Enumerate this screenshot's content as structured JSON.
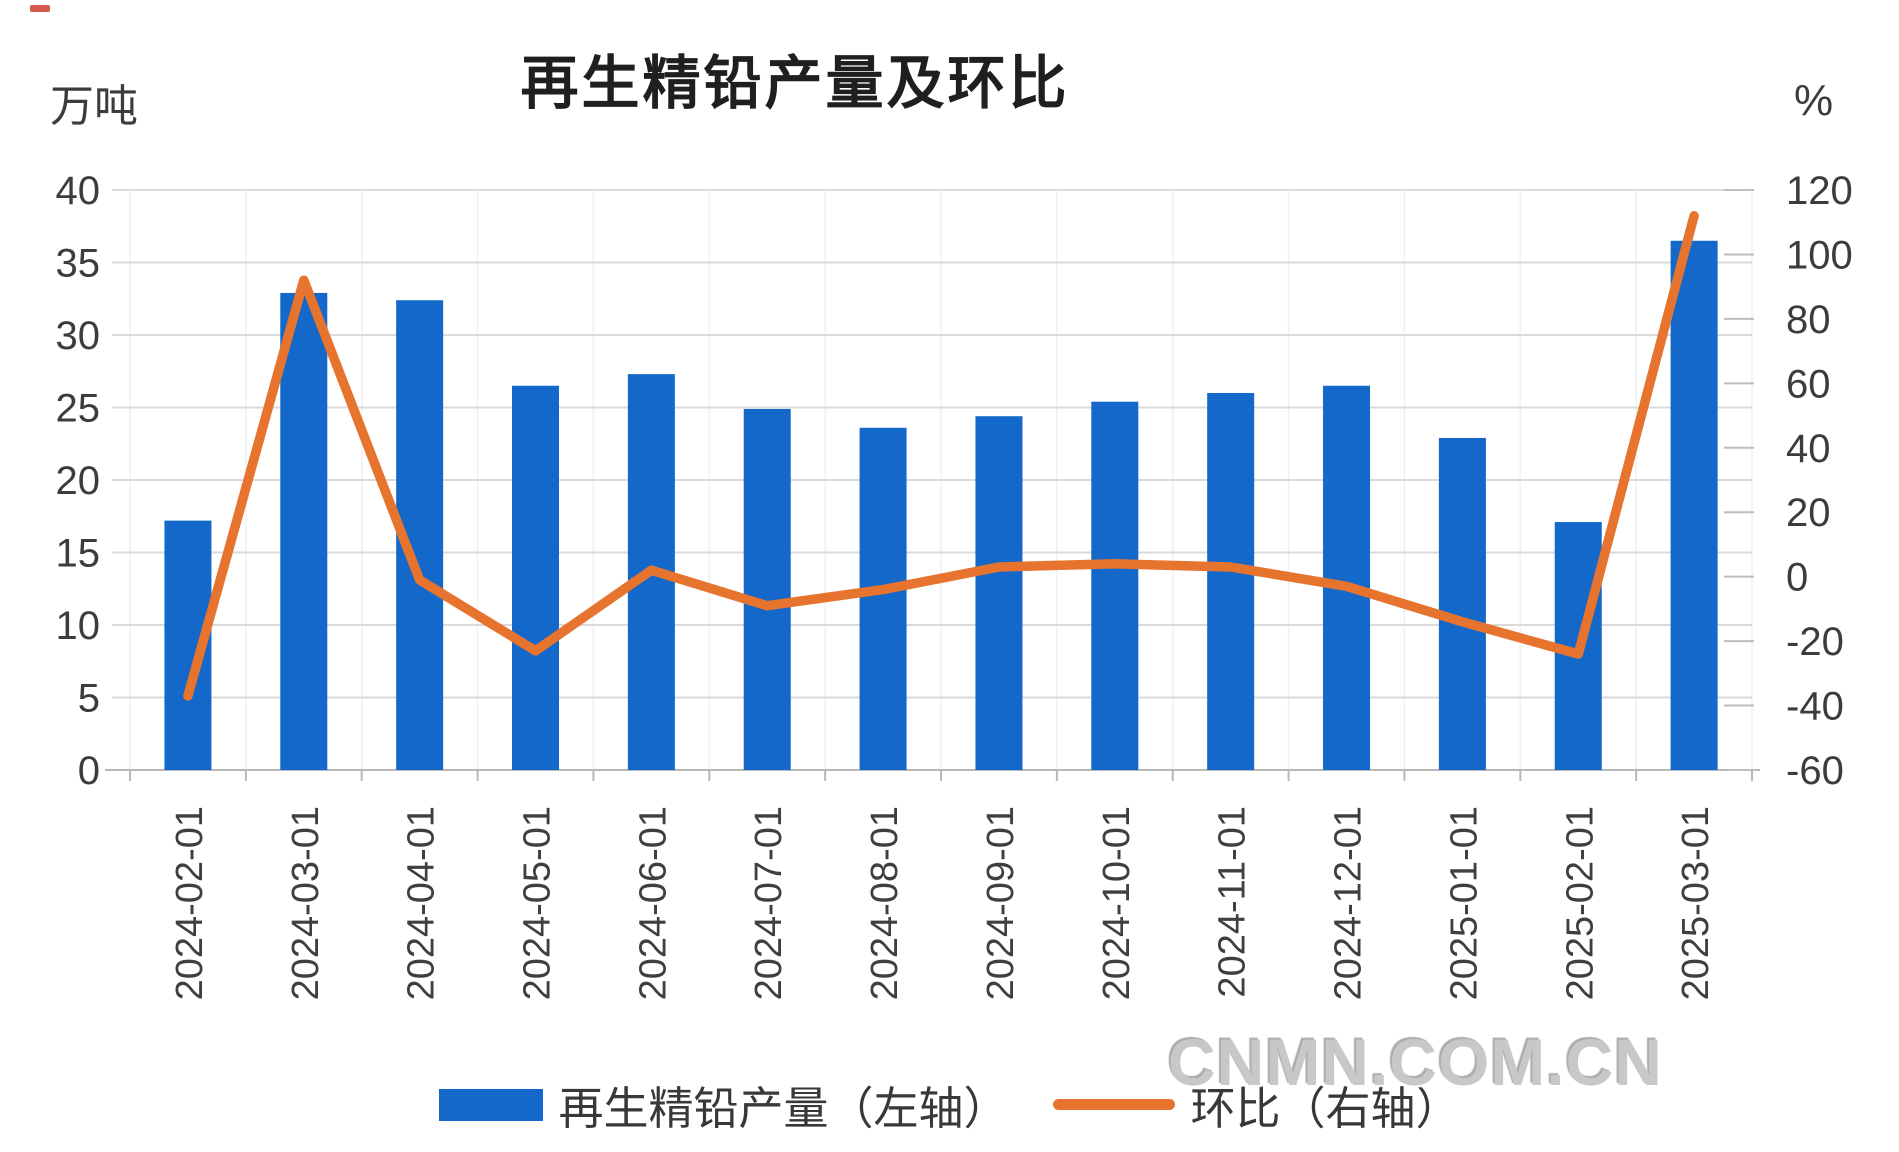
{
  "page": {
    "background": "#ffffff"
  },
  "watermark": {
    "text": "CNMN.COM.CN"
  },
  "chart_data": {
    "type": "combo",
    "title": "再生精铅产量及环比",
    "categories": [
      "2024-02-01",
      "2024-03-01",
      "2024-04-01",
      "2024-05-01",
      "2024-06-01",
      "2024-07-01",
      "2024-08-01",
      "2024-09-01",
      "2024-10-01",
      "2024-11-01",
      "2024-12-01",
      "2025-01-01",
      "2025-02-01",
      "2025-03-01"
    ],
    "left_axis": {
      "unit": "万吨",
      "min": 0,
      "max": 40,
      "ticks": [
        40,
        35,
        30,
        25,
        20,
        15,
        10,
        5,
        0
      ]
    },
    "right_axis": {
      "unit": "%",
      "min": -60,
      "max": 120,
      "ticks": [
        120,
        100,
        80,
        60,
        40,
        20,
        0,
        -20,
        -40,
        -60
      ]
    },
    "series": [
      {
        "name": "再生精铅产量（左轴）",
        "type": "bar",
        "axis": "left",
        "color": "#1368c9",
        "values": [
          17.2,
          32.9,
          32.4,
          26.5,
          27.3,
          24.9,
          23.6,
          24.4,
          25.4,
          26.0,
          26.5,
          22.9,
          17.1,
          36.5
        ]
      },
      {
        "name": "环比（右轴）",
        "type": "line",
        "axis": "right",
        "color": "#e6742e",
        "values": [
          -37,
          92,
          -1,
          -23,
          2,
          -9,
          -4,
          3,
          4,
          3,
          -3,
          -14,
          -24,
          112
        ]
      }
    ],
    "legend_position": "bottom",
    "grid": true
  },
  "colors": {
    "grid": "#dadada",
    "vgrid": "#f0f0f0",
    "baseline": "#b8b8b8",
    "tick": "#bdbdbd",
    "axis_text": "#3c3c3c",
    "date_text": "#3f3f3f",
    "title_text": "#1f1f1f",
    "watermark_text": "#c8c8c8"
  }
}
